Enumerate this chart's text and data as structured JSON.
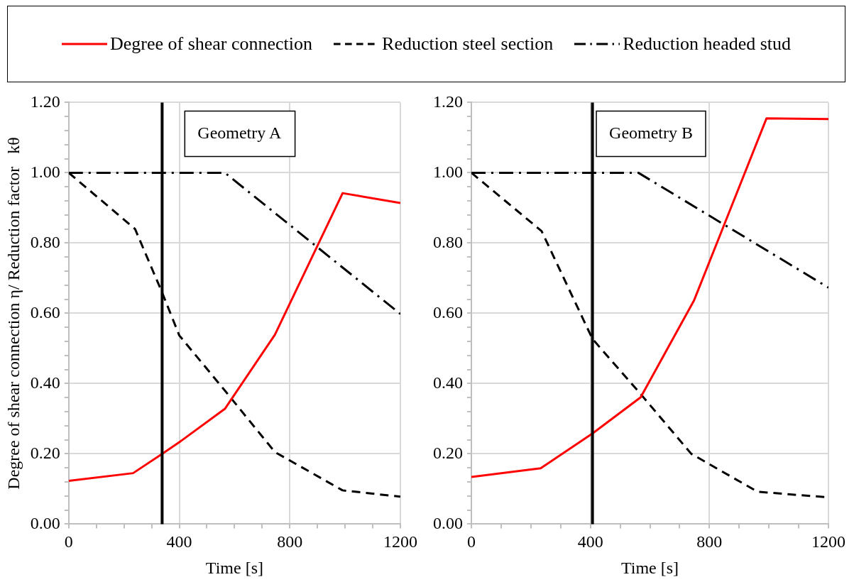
{
  "chart_data": [
    {
      "type": "line",
      "ylabel": "Degree of shear connection η/ Reduction factor   kθ",
      "xlabel": "Time [s]",
      "xlim": [
        0,
        1200
      ],
      "ylim": [
        0,
        1.2
      ],
      "legend": "top",
      "grid": true,
      "marker": "none",
      "annotations": [
        "Geometry A"
      ],
      "xticks": [
        0,
        {
          "value": 100,
          "label": null
        },
        {
          "value": 200,
          "label": null
        },
        {
          "value": 300,
          "label": null
        },
        400,
        {
          "value": 500,
          "label": null
        },
        {
          "value": 600,
          "label": null
        },
        {
          "value": 700,
          "label": null
        },
        800,
        {
          "value": 900,
          "label": null
        },
        {
          "value": 1000,
          "label": null
        },
        {
          "value": 1100,
          "label": null
        },
        1200
      ],
      "yticks": [
        {
          "value": 0,
          "label": "0.00"
        },
        {
          "value": 0.04,
          "label": null
        },
        {
          "value": 0.08,
          "label": null
        },
        {
          "value": 0.12,
          "label": null
        },
        {
          "value": 0.16,
          "label": null
        },
        {
          "value": 0.2,
          "label": "0.20"
        },
        {
          "value": 0.24,
          "label": null
        },
        {
          "value": 0.28,
          "label": null
        },
        {
          "value": 0.32,
          "label": null
        },
        {
          "value": 0.36,
          "label": null
        },
        {
          "value": 0.4,
          "label": "0.40"
        },
        {
          "value": 0.44,
          "label": null
        },
        {
          "value": 0.48,
          "label": null
        },
        {
          "value": 0.52,
          "label": null
        },
        {
          "value": 0.56,
          "label": null
        },
        {
          "value": 0.6,
          "label": "0.60"
        },
        {
          "value": 0.64,
          "label": null
        },
        {
          "value": 0.68,
          "label": null
        },
        {
          "value": 0.72,
          "label": null
        },
        {
          "value": 0.76,
          "label": null
        },
        {
          "value": 0.8,
          "label": "0.80"
        },
        {
          "value": 0.84,
          "label": null
        },
        {
          "value": 0.88,
          "label": null
        },
        {
          "value": 0.92,
          "label": null
        },
        {
          "value": 0.96,
          "label": null
        },
        {
          "value": 1,
          "label": "1.00"
        },
        {
          "value": 1.04,
          "label": null
        },
        {
          "value": 1.08,
          "label": null
        },
        {
          "value": 1.12,
          "label": null
        },
        {
          "value": 1.16,
          "label": null
        },
        {
          "value": 1.2,
          "label": "1.20"
        }
      ],
      "ref_lines": [
        {
          "axis": "x",
          "value": 338,
          "color": "#000000"
        }
      ],
      "series": [
        {
          "name": "Degree of shear connection",
          "color": "#ff0000",
          "line_style": "solid",
          "x": [
            0,
            233,
            338,
            400,
            565,
            746,
            991,
            1200
          ],
          "values": [
            0.123,
            0.145,
            0.2,
            0.233,
            0.328,
            0.539,
            0.942,
            0.914
          ]
        },
        {
          "name": "Reduction steel section",
          "color": "#000000",
          "line_style": "dashed",
          "x": [
            0,
            240,
            338,
            400,
            565,
            746,
            991,
            1200
          ],
          "values": [
            1,
            0.84,
            0.659,
            0.537,
            0.38,
            0.205,
            0.096,
            0.078
          ]
        },
        {
          "name": "Reduction headed stud",
          "color": "#000000",
          "line_style": "dashdot",
          "x": [
            0,
            565,
            1200
          ],
          "values": [
            1,
            1,
            0.598
          ]
        }
      ]
    },
    {
      "type": "line",
      "xlabel": "Time [s]",
      "xlim": [
        0,
        1200
      ],
      "ylim": [
        0,
        1.2
      ],
      "grid": true,
      "marker": "none",
      "annotations": [
        "Geometry B"
      ],
      "xticks": [
        0,
        {
          "value": 100,
          "label": null
        },
        {
          "value": 200,
          "label": null
        },
        {
          "value": 300,
          "label": null
        },
        400,
        {
          "value": 500,
          "label": null
        },
        {
          "value": 600,
          "label": null
        },
        {
          "value": 700,
          "label": null
        },
        800,
        {
          "value": 900,
          "label": null
        },
        {
          "value": 1000,
          "label": null
        },
        {
          "value": 1100,
          "label": null
        },
        1200
      ],
      "yticks": [
        {
          "value": 0,
          "label": "0.00"
        },
        {
          "value": 0.04,
          "label": null
        },
        {
          "value": 0.08,
          "label": null
        },
        {
          "value": 0.12,
          "label": null
        },
        {
          "value": 0.16,
          "label": null
        },
        {
          "value": 0.2,
          "label": "0.20"
        },
        {
          "value": 0.24,
          "label": null
        },
        {
          "value": 0.28,
          "label": null
        },
        {
          "value": 0.32,
          "label": null
        },
        {
          "value": 0.36,
          "label": null
        },
        {
          "value": 0.4,
          "label": "0.40"
        },
        {
          "value": 0.44,
          "label": null
        },
        {
          "value": 0.48,
          "label": null
        },
        {
          "value": 0.52,
          "label": null
        },
        {
          "value": 0.56,
          "label": null
        },
        {
          "value": 0.6,
          "label": "0.60"
        },
        {
          "value": 0.64,
          "label": null
        },
        {
          "value": 0.68,
          "label": null
        },
        {
          "value": 0.72,
          "label": null
        },
        {
          "value": 0.76,
          "label": null
        },
        {
          "value": 0.8,
          "label": "0.80"
        },
        {
          "value": 0.84,
          "label": null
        },
        {
          "value": 0.88,
          "label": null
        },
        {
          "value": 0.92,
          "label": null
        },
        {
          "value": 0.96,
          "label": null
        },
        {
          "value": 1,
          "label": "1.00"
        },
        {
          "value": 1.04,
          "label": null
        },
        {
          "value": 1.08,
          "label": null
        },
        {
          "value": 1.12,
          "label": null
        },
        {
          "value": 1.16,
          "label": null
        },
        {
          "value": 1.2,
          "label": "1.20"
        }
      ],
      "ref_lines": [
        {
          "axis": "x",
          "value": 407,
          "color": "#000000"
        }
      ],
      "series": [
        {
          "color": "#ff0000",
          "line_style": "solid",
          "x": [
            0,
            233,
            407,
            569,
            748,
            992,
            1200
          ],
          "values": [
            0.134,
            0.159,
            0.258,
            0.361,
            0.636,
            1.155,
            1.153
          ]
        },
        {
          "color": "#000000",
          "line_style": "dashed",
          "x": [
            0,
            236,
            407,
            569,
            739,
            962,
            1200
          ],
          "values": [
            1,
            0.834,
            0.527,
            0.37,
            0.2,
            0.092,
            0.076
          ]
        },
        {
          "color": "#000000",
          "line_style": "dashdot",
          "x": [
            0,
            561,
            1200
          ],
          "values": [
            1,
            1,
            0.673
          ]
        }
      ]
    }
  ]
}
